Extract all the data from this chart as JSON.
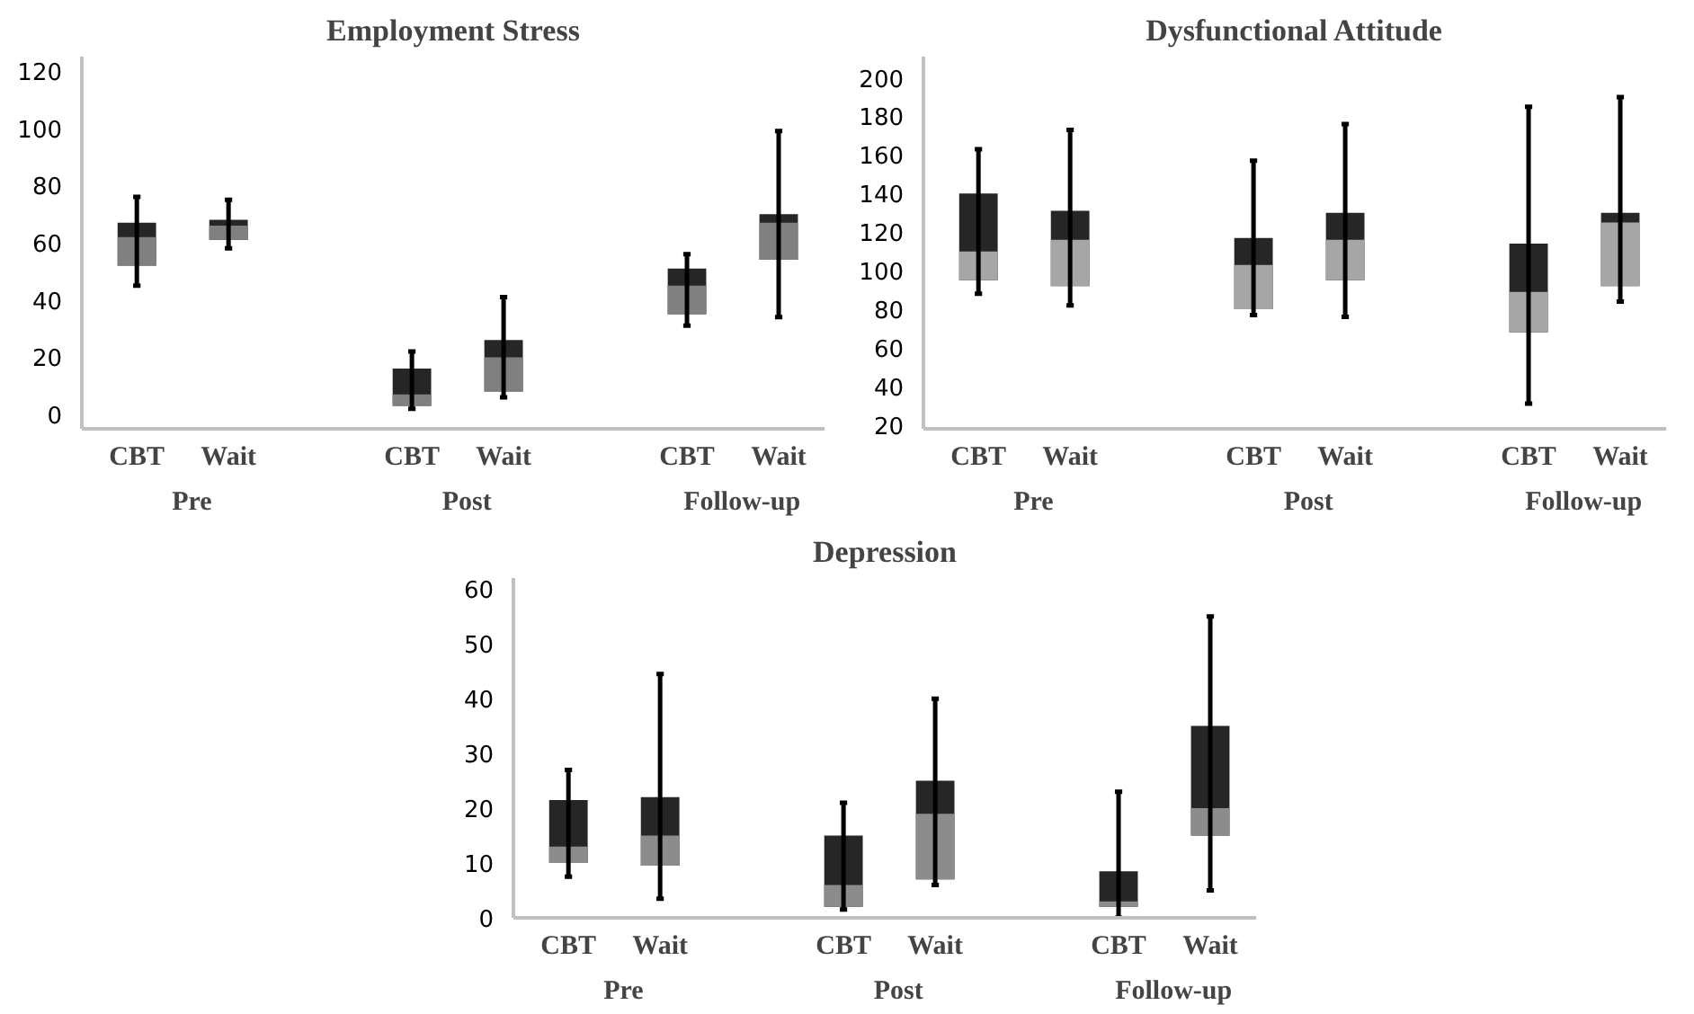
{
  "chart_data": [
    {
      "type": "box",
      "title": "Employment Stress",
      "categories": [
        "CBT",
        "Wait",
        null,
        "CBT",
        "Wait",
        null,
        "CBT",
        "Wait"
      ],
      "annotations": [
        "Pre",
        "Post",
        "Follow-up"
      ],
      "color": "#808080",
      "colors": [
        "#262626",
        "#262626",
        null,
        "#262626",
        "#262626",
        null,
        "#262626",
        "#262626"
      ],
      "ylim": [
        -5,
        125
      ],
      "yticks": [
        0,
        20,
        40,
        60,
        80,
        100,
        120
      ],
      "grid": false,
      "boxes": [
        {
          "low": 45,
          "q1": 52,
          "median": 62,
          "q3": 67,
          "high": 76
        },
        {
          "low": 58,
          "q1": 61,
          "median": 66,
          "q3": 68,
          "high": 75
        },
        null,
        {
          "low": 2,
          "q1": 3,
          "median": 7,
          "q3": 16,
          "high": 22
        },
        {
          "low": 6,
          "q1": 8,
          "median": 20,
          "q3": 26,
          "high": 41
        },
        null,
        {
          "low": 31,
          "q1": 35,
          "median": 45,
          "q3": 51,
          "high": 56
        },
        {
          "low": 34,
          "q1": 54,
          "median": 67,
          "q3": 70,
          "high": 99
        }
      ]
    },
    {
      "type": "box",
      "title": "Dysfunctional Attitude",
      "categories": [
        "CBT",
        "Wait",
        null,
        "CBT",
        "Wait",
        null,
        "CBT",
        "Wait"
      ],
      "annotations": [
        "Pre",
        "Post",
        "Follow-up"
      ],
      "color": "#a6a6a6",
      "colors": [
        "#262626",
        "#262626",
        null,
        "#262626",
        "#262626",
        null,
        "#262626",
        "#262626"
      ],
      "ylim": [
        18,
        211
      ],
      "yticks": [
        20,
        40,
        60,
        80,
        100,
        120,
        140,
        160,
        180,
        200
      ],
      "grid": false,
      "boxes": [
        {
          "low": 88,
          "q1": 95,
          "median": 110,
          "q3": 140,
          "high": 163
        },
        {
          "low": 82,
          "q1": 92,
          "median": 116,
          "q3": 131,
          "high": 173
        },
        null,
        {
          "low": 77,
          "q1": 80,
          "median": 103,
          "q3": 117,
          "high": 157
        },
        {
          "low": 76,
          "q1": 95,
          "median": 116,
          "q3": 130,
          "high": 176
        },
        null,
        {
          "low": 31,
          "q1": 68,
          "median": 89,
          "q3": 114,
          "high": 185
        },
        {
          "low": 84,
          "q1": 92,
          "median": 125,
          "q3": 130,
          "high": 190
        }
      ]
    },
    {
      "type": "box",
      "title": "Depression",
      "categories": [
        "CBT",
        "Wait",
        null,
        "CBT",
        "Wait",
        null,
        "CBT",
        "Wait"
      ],
      "annotations": [
        "Pre",
        "Post",
        "Follow-up"
      ],
      "color": "#8c8c8c",
      "colors": [
        "#262626",
        "#262626",
        null,
        "#262626",
        "#262626",
        null,
        "#262626",
        "#262626"
      ],
      "ylim": [
        0,
        62
      ],
      "yticks": [
        0,
        10,
        20,
        30,
        40,
        50,
        60
      ],
      "grid": false,
      "boxes": [
        {
          "low": 7.5,
          "q1": 10,
          "median": 13,
          "q3": 21.5,
          "high": 27
        },
        {
          "low": 3.5,
          "q1": 9.5,
          "median": 15,
          "q3": 22,
          "high": 44.5
        },
        null,
        {
          "low": 1.5,
          "q1": 2,
          "median": 6,
          "q3": 15,
          "high": 21
        },
        {
          "low": 6,
          "q1": 7,
          "median": 19,
          "q3": 25,
          "high": 40
        },
        null,
        {
          "low": 0,
          "q1": 2,
          "median": 3,
          "q3": 8.5,
          "high": 23
        },
        {
          "low": 5,
          "q1": 15,
          "median": 20,
          "q3": 35,
          "high": 55
        }
      ]
    }
  ]
}
